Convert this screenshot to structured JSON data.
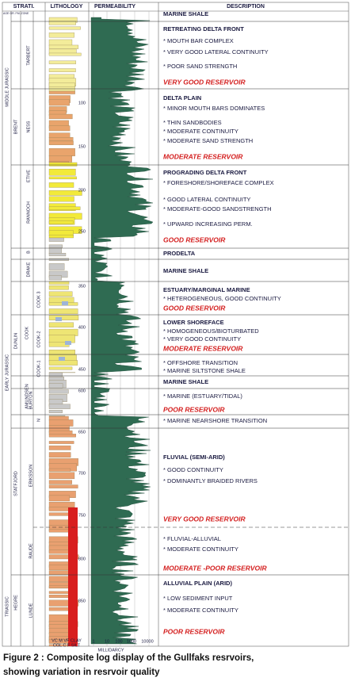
{
  "header": {
    "strat": "STRATI.",
    "strat_sub": "AGE GR. FM. ZONE",
    "lithology": "LITHOLOGY",
    "permeability": "PERMEABILITY",
    "description": "DESCRIPTION"
  },
  "strat": {
    "age": [
      "MIDDLE JURASSIC",
      "EARLY JURASSIC",
      "TRIASSIC"
    ],
    "group": [
      "BRENT",
      "DUNLIN",
      "STATFJORD",
      "HEGRE"
    ],
    "zone": [
      "TARBERT",
      "NESS",
      "ETIVE",
      "RANNOCH",
      "B",
      "DRAKE",
      "COOK 3",
      "COOK-2",
      "COOK-1",
      "COOK",
      "AMUNDSEN",
      "BURTON",
      "N",
      "ERIKSSON",
      "RAUDE",
      "LUNDE"
    ]
  },
  "depths": [
    "100",
    "150",
    "200",
    "250",
    "350",
    "400",
    "450",
    "600",
    "650",
    "700",
    "750",
    "800",
    "850"
  ],
  "lithology_scale": [
    "VC M VF CLAY",
    "CGL C  F  SILT"
  ],
  "permeability_scale": {
    "ticks": [
      "1",
      "10",
      "100",
      "1000",
      "10000"
    ],
    "unit": "MILLIDARCY"
  },
  "sections": [
    {
      "title": "MARINE SHALE"
    },
    {
      "title": "RETREATING DELTA FRONT",
      "bullets": [
        "* MOUTH BAR COMPLEX",
        "* VERY GOOD LATERAL CONTINUITY",
        "* POOR SAND STRENGTH"
      ],
      "rating": "VERY GOOD RESERVOIR"
    },
    {
      "title": "DELTA PLAIN",
      "bullets": [
        "* MINOR MOUTH BARS DOMINATES",
        "* THIN SANDBODIES",
        "* MODERATE CONTINUITY",
        "* MODERATE SAND STRENGTH"
      ],
      "rating": "MODERATE RESERVOIR"
    },
    {
      "title": "PROGRADING DELTA FRONT",
      "bullets": [
        "* FORESHORE/SHOREFACE COMPLEX",
        "* GOOD LATERAL CONTINUITY",
        "* MODERATE-GOOD SANDSTRENGTH",
        "* UPWARD INCREASING PERM."
      ],
      "rating": "GOOD RESERVOIR"
    },
    {
      "title": "PRODELTA"
    },
    {
      "title": "MARINE SHALE"
    },
    {
      "title": "ESTUARY/MARGINAL MARINE",
      "bullets": [
        "* HETEROGENEOUS, GOOD CONTINUITY"
      ],
      "rating": "GOOD RESERVOIR"
    },
    {
      "title": "LOWER SHOREFACE",
      "bullets": [
        "* HOMOGENEOUS/BIOTURBATED",
        "* VERY GOOD CONTINUITY"
      ],
      "rating": "MODERATE RESERVOIR"
    },
    {
      "bullets": [
        "* OFFSHORE TRANSITION",
        "* MARINE SILTSTONE SHALE"
      ]
    },
    {
      "title": "MARINE SHALE"
    },
    {
      "bullets": [
        "* MARINE (ESTUARY/TIDAL)"
      ],
      "rating": "POOR RESERVOIR"
    },
    {
      "bullets": [
        "* MARINE NEARSHORE TRANSITION"
      ]
    },
    {
      "title": "FLUVIAL (SEMI-ARID)",
      "bullets": [
        "* GOOD CONTINUITY",
        "* DOMINANTLY BRAIDED RIVERS"
      ],
      "rating": "VERY GOOD RESERVOIR"
    },
    {
      "bullets": [
        "* FLUVIAL-ALLUVIAL",
        "* MODERATE CONTINUITY"
      ],
      "rating": "MODERATE -POOR RESERVOIR"
    },
    {
      "title": "ALLUVIAL PLAIN (ARID)",
      "bullets": [
        "* LOW SEDIMENT INPUT",
        "* MODERATE CONTINUITY"
      ],
      "rating": "POOR RESERVOIR"
    }
  ],
  "caption": [
    "Figure 2 : Composite log display of the Gullfaks resrvoirs,",
    "showing variation in resrvoir quality"
  ]
}
